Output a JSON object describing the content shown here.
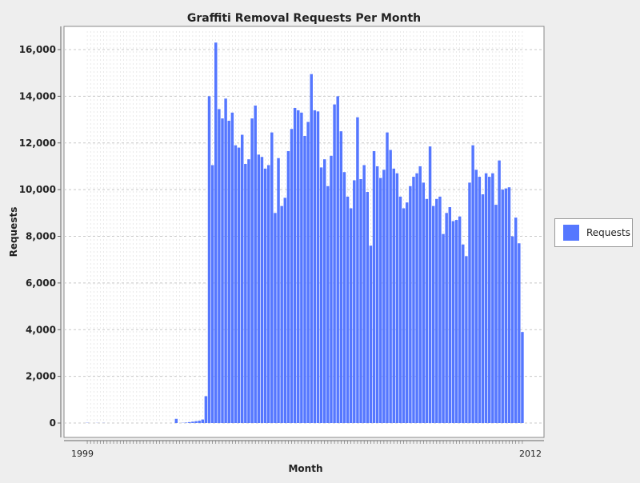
{
  "chart_data": {
    "type": "bar",
    "title": "Graffiti Removal Requests Per Month",
    "xlabel": "Month",
    "ylabel": "Requests",
    "ylim": [
      0,
      17000
    ],
    "yticks": [
      0,
      2000,
      4000,
      6000,
      8000,
      10000,
      12000,
      14000,
      16000
    ],
    "ytick_labels": [
      "0",
      "2,000",
      "4,000",
      "6,000",
      "8,000",
      "10,000",
      "12,000",
      "14,000",
      "16,000"
    ],
    "x_tick_labels_visible": [
      "1999",
      "2012"
    ],
    "grid": true,
    "legend_position": "right",
    "colors": {
      "bar": "#5577ff",
      "plot_background": "#ffffff",
      "page_background": "#eeeeee",
      "grid": "#c8c8c8"
    },
    "series": [
      {
        "name": "Requests",
        "values": [
          10,
          0,
          0,
          5,
          0,
          5,
          0,
          0,
          0,
          0,
          0,
          0,
          0,
          0,
          0,
          0,
          0,
          0,
          0,
          0,
          0,
          0,
          0,
          0,
          0,
          0,
          0,
          180,
          0,
          10,
          20,
          40,
          60,
          80,
          100,
          150,
          1150,
          14000,
          11050,
          16300,
          13450,
          13050,
          13900,
          12950,
          13300,
          11900,
          11800,
          12350,
          11100,
          11300,
          13050,
          13600,
          11500,
          11400,
          10900,
          11050,
          12450,
          9000,
          11350,
          9300,
          9650,
          11650,
          12600,
          13500,
          13400,
          13300,
          12300,
          12900,
          14950,
          13400,
          13350,
          10950,
          11300,
          10150,
          11450,
          13650,
          14000,
          12500,
          10750,
          9700,
          9200,
          10400,
          13100,
          10450,
          11050,
          9900,
          7600,
          11650,
          11000,
          10500,
          10850,
          12450,
          11700,
          10900,
          10700,
          9700,
          9200,
          9450,
          10150,
          10550,
          10700,
          11000,
          10300,
          9600,
          11850,
          9300,
          9600,
          9700,
          8100,
          9000,
          9250,
          8650,
          8700,
          8850,
          7650,
          7150,
          10300,
          11900,
          10850,
          10550,
          9800,
          10700,
          10550,
          10700,
          9350,
          11250,
          10000,
          10050,
          10100,
          8000,
          8800,
          7700,
          3900
        ]
      }
    ]
  }
}
